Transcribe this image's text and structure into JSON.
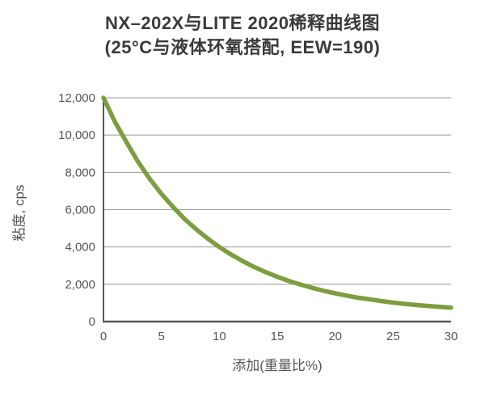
{
  "title": {
    "line1": "NX–202X与LITE 2020稀释曲线图",
    "line2": "(25°C与液体环氧搭配, EEW=190)"
  },
  "colors": {
    "curve": "#7e9d3f",
    "gridline": "#999999",
    "axis": "#595959",
    "title_text": "#3a3a3a",
    "tick_text": "#555555"
  },
  "chart_data": {
    "type": "line",
    "title": "NX–202X与LITE 2020稀释曲线图 (25°C与液体环氧搭配, EEW=190)",
    "xlabel": "添加(重量比%)",
    "ylabel": "粘度, cps",
    "xlim": [
      0,
      30
    ],
    "ylim": [
      0,
      12000
    ],
    "xticks": [
      0,
      5,
      10,
      15,
      20,
      25,
      30
    ],
    "xtick_labels": [
      "0",
      "5",
      "10",
      "15",
      "20",
      "25",
      "30"
    ],
    "yticks": [
      0,
      2000,
      4000,
      6000,
      8000,
      10000,
      12000
    ],
    "ytick_labels": [
      "0",
      "2,000",
      "4,000",
      "6,000",
      "8,000",
      "10,000",
      "12,000"
    ],
    "grid": "horizontal",
    "legend": "none",
    "series": [
      {
        "color": "#7e9d3f",
        "x": [
          0,
          1,
          2,
          3,
          4,
          5,
          6,
          7,
          8,
          9,
          10,
          11,
          12,
          13,
          14,
          15,
          16,
          17,
          18,
          19,
          20,
          21,
          22,
          23,
          24,
          25,
          26,
          27,
          28,
          29,
          30
        ],
        "y": [
          12000,
          10700,
          9600,
          8550,
          7650,
          6850,
          6150,
          5500,
          4950,
          4450,
          4000,
          3600,
          3250,
          2930,
          2650,
          2400,
          2180,
          1990,
          1810,
          1650,
          1515,
          1390,
          1280,
          1190,
          1100,
          1020,
          950,
          890,
          840,
          790,
          750
        ]
      }
    ]
  }
}
